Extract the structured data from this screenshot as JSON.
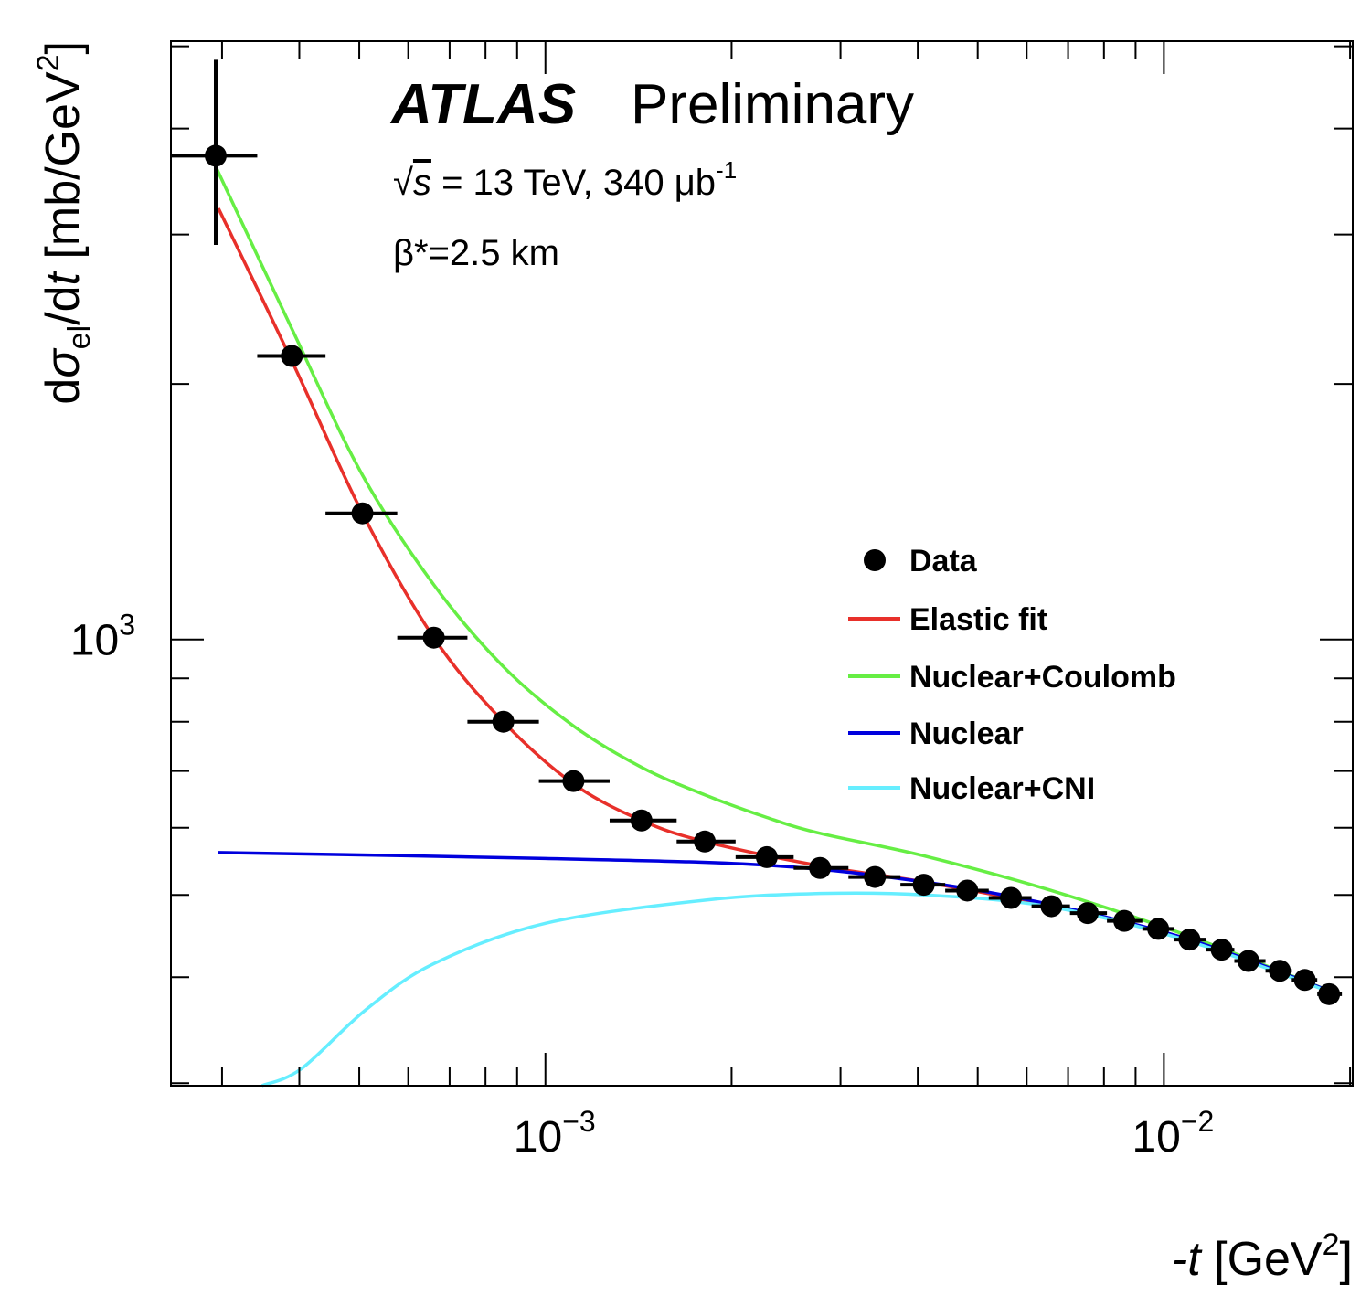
{
  "chart_data": {
    "type": "scatter",
    "title": "",
    "annotations": {
      "experiment": "ATLAS",
      "status": "Preliminary",
      "energy_lumi": {
        "sqrt": "√",
        "s": "s",
        "rest": " = 13 TeV, 340 μb",
        "sup": "-1"
      },
      "beta": "β*=2.5 km"
    },
    "xlabel": {
      "var": "-t",
      "unit": " [GeV",
      "sup": "2",
      "close": "]"
    },
    "ylabel": {
      "d": "d",
      "sigma": "σ",
      "sub": "el",
      "rest": "/d",
      "t": "t",
      "unit": " [mb/GeV",
      "sup": "2",
      "close": "]"
    },
    "xscale": "log",
    "yscale": "log",
    "xlim": [
      0.000248,
      0.0202
    ],
    "ylim": [
      298,
      5070
    ],
    "x_tick_labels": [
      {
        "value": 0.001,
        "base": "10",
        "exp": "−3"
      },
      {
        "value": 0.01,
        "base": "10",
        "exp": "−2"
      }
    ],
    "y_tick_labels": [
      {
        "value": 1000,
        "base": "10",
        "exp": "3"
      }
    ],
    "x_minor_ticks": [
      0.0003,
      0.0004,
      0.0005,
      0.0006,
      0.0007,
      0.0008,
      0.0009,
      0.002,
      0.003,
      0.004,
      0.005,
      0.006,
      0.007,
      0.008,
      0.009,
      0.02
    ],
    "y_minor_ticks": [
      300,
      400,
      500,
      600,
      700,
      800,
      900,
      2000,
      3000,
      4000,
      5000
    ],
    "grid": false,
    "legend_placement": "right",
    "legend": [
      {
        "label": "Data",
        "kind": "marker",
        "color": "#000000"
      },
      {
        "label": "Elastic fit",
        "kind": "line",
        "color": "#e8302a"
      },
      {
        "label": "Nuclear+Coulomb",
        "kind": "line",
        "color": "#66ee44"
      },
      {
        "label": "Nuclear",
        "kind": "line",
        "color": "#0000dd"
      },
      {
        "label": "Nuclear+CNI",
        "kind": "line",
        "color": "#66eeff"
      }
    ],
    "data": {
      "name": "Data",
      "x": [
        0.000293,
        0.000389,
        0.000506,
        0.00066,
        0.000855,
        0.00111,
        0.00143,
        0.00181,
        0.00228,
        0.00278,
        0.00341,
        0.00409,
        0.00481,
        0.00566,
        0.00658,
        0.00753,
        0.00863,
        0.00979,
        0.011,
        0.0124,
        0.0137,
        0.0154,
        0.0169,
        0.0185
      ],
      "y": [
        3715,
        2158,
        1408,
        1005,
        800,
        681,
        612,
        578,
        554,
        538,
        525,
        514,
        506,
        496,
        485,
        476,
        466,
        456,
        443,
        431,
        418,
        407,
        397,
        382
      ],
      "x_bin_edges": [
        0.000248,
        0.000342,
        0.000441,
        0.000576,
        0.000748,
        0.000976,
        0.00127,
        0.00163,
        0.00203,
        0.00252,
        0.00309,
        0.00375,
        0.00443,
        0.00521,
        0.00611,
        0.00705,
        0.00809,
        0.00923,
        0.0104,
        0.0117,
        0.013,
        0.0146,
        0.0161,
        0.0177,
        0.0194
      ],
      "y_err_first": [
        2917,
        4820
      ]
    },
    "curves": [
      {
        "name": "Elastic fit",
        "color": "#e8302a",
        "x": [
          0.000296,
          0.000389,
          0.000506,
          0.00066,
          0.000855,
          0.00111,
          0.00143,
          0.00181,
          0.00278,
          0.00409,
          0.00658,
          0.011,
          0.0186
        ],
        "y": [
          3221,
          2130,
          1408,
          1005,
          800,
          676,
          612,
          578,
          541,
          518,
          485,
          443,
          385
        ]
      },
      {
        "name": "Nuclear+Coulomb",
        "color": "#66ee44",
        "x": [
          0.000293,
          0.000389,
          0.000506,
          0.00066,
          0.000855,
          0.00111,
          0.00143,
          0.00181,
          0.00228,
          0.00278,
          0.00409,
          0.00658,
          0.011,
          0.0186
        ],
        "y": [
          3608,
          2323,
          1562,
          1160,
          929,
          791,
          707,
          656,
          617,
          591,
          556,
          506,
          447,
          385
        ]
      },
      {
        "name": "Nuclear",
        "color": "#0000dd",
        "x": [
          0.000296,
          0.001,
          0.00228,
          0.00409,
          0.00658,
          0.011,
          0.0186
        ],
        "y": [
          561,
          552,
          542,
          518,
          487,
          443,
          385
        ]
      },
      {
        "name": "Nuclear+CNI",
        "color": "#66eeff",
        "x": [
          0.000348,
          0.000403,
          0.000512,
          0.00066,
          0.001,
          0.00181,
          0.00278,
          0.00411,
          0.00658,
          0.011,
          0.0186
        ],
        "y": [
          298,
          312,
          366,
          415,
          463,
          493,
          502,
          500,
          484,
          441,
          384
        ]
      }
    ]
  }
}
